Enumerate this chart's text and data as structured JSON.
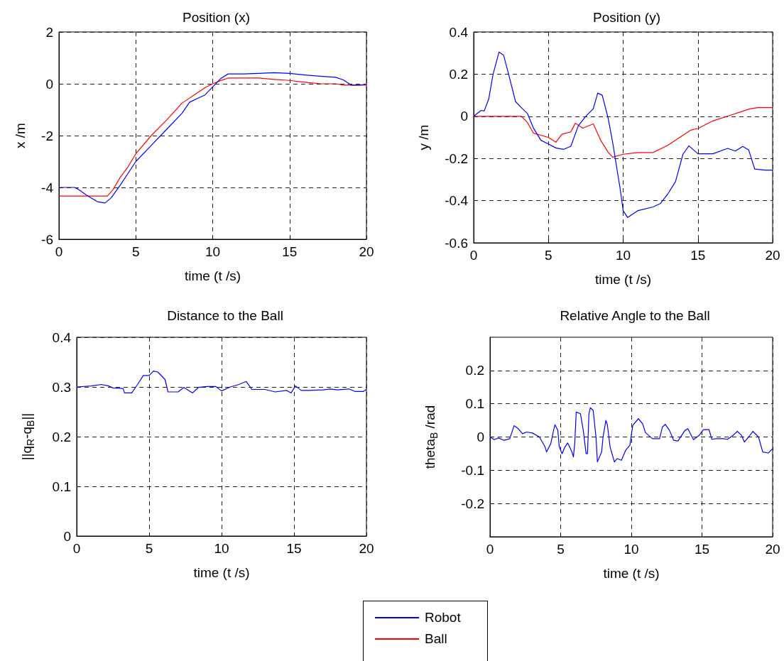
{
  "chart_data": [
    {
      "type": "line",
      "title": "Position (x)",
      "xlabel": "time (t /s)",
      "ylabel": "x /m",
      "xlim": [
        0,
        20
      ],
      "xticks": [
        0,
        5,
        10,
        15,
        20
      ],
      "ylim": [
        -6,
        2
      ],
      "yticks": [
        -6,
        -4,
        -2,
        0,
        2
      ],
      "grid": true,
      "legend": "bottom",
      "line_style": "solid",
      "marker": "none",
      "series": [
        {
          "name": "Robot",
          "color": "#0000ff",
          "x": [
            0,
            1,
            1.2,
            1.8,
            2.5,
            3,
            3.4,
            4,
            5,
            6,
            7,
            8,
            8.5,
            9,
            9.5,
            10,
            10.5,
            11,
            12,
            13,
            14,
            15,
            16,
            17,
            18,
            18.5,
            19,
            19.5,
            20
          ],
          "values": [
            -4,
            -4,
            -4.05,
            -4.3,
            -4.55,
            -4.6,
            -4.4,
            -3.9,
            -3,
            -2.38,
            -1.76,
            -1.14,
            -0.71,
            -0.57,
            -0.43,
            -0.12,
            0.19,
            0.38,
            0.38,
            0.4,
            0.43,
            0.4,
            0.34,
            0.29,
            0.25,
            0.15,
            -0.05,
            -0.05,
            -0.02
          ]
        },
        {
          "name": "Ball",
          "color": "#ff0000",
          "x": [
            0,
            3.15,
            3.5,
            4,
            4.5,
            5,
            6,
            7,
            8,
            9,
            9.5,
            10,
            10.5,
            11,
            13,
            14,
            15,
            16,
            17,
            18,
            18.5,
            20
          ],
          "values": [
            -4.33,
            -4.33,
            -4.1,
            -3.6,
            -3.2,
            -2.7,
            -2,
            -1.4,
            -0.75,
            -0.35,
            -0.15,
            0,
            0.12,
            0.22,
            0.22,
            0.17,
            0.13,
            0.06,
            0,
            0,
            -0.05,
            -0.05
          ]
        }
      ]
    },
    {
      "type": "line",
      "title": "Position (y)",
      "xlabel": "time (t /s)",
      "ylabel": "y /m",
      "xlim": [
        0,
        20
      ],
      "xticks": [
        0,
        5,
        10,
        15,
        20
      ],
      "ylim": [
        -0.6,
        0.4
      ],
      "yticks": [
        -0.6,
        -0.4,
        -0.2,
        0,
        0.2,
        0.4
      ],
      "grid": true,
      "line_style": "solid",
      "marker": "none",
      "series": [
        {
          "color": "#0000ff",
          "x": [
            0,
            0.5,
            0.7,
            1,
            1.3,
            1.7,
            2,
            2.3,
            2.8,
            3.2,
            3.6,
            4,
            4.5,
            5,
            5.5,
            6,
            6.5,
            7,
            7.5,
            8,
            8.3,
            8.6,
            9,
            9.3,
            9.8,
            10,
            10.3,
            11,
            12,
            12.5,
            13,
            13.5,
            14,
            14.4,
            15,
            16,
            17,
            17.5,
            18,
            18.4,
            18.8,
            19.5,
            20
          ],
          "values": [
            0,
            0.028,
            0.025,
            0.08,
            0.2,
            0.305,
            0.29,
            0.21,
            0.07,
            0.04,
            0.013,
            -0.056,
            -0.114,
            -0.131,
            -0.15,
            -0.157,
            -0.142,
            -0.045,
            0,
            0.036,
            0.11,
            0.1,
            -0.01,
            -0.125,
            -0.344,
            -0.447,
            -0.48,
            -0.447,
            -0.43,
            -0.413,
            -0.367,
            -0.31,
            -0.18,
            -0.14,
            -0.178,
            -0.178,
            -0.152,
            -0.165,
            -0.143,
            -0.16,
            -0.25,
            -0.255,
            -0.255
          ]
        },
        {
          "color": "#ff0000",
          "x": [
            0,
            3.2,
            3.6,
            4,
            4.5,
            5,
            5.5,
            5.9,
            6.5,
            6.8,
            7.3,
            8,
            8.5,
            9,
            9.3,
            10,
            11,
            12,
            13,
            14,
            14.5,
            15,
            16,
            17,
            18,
            18.5,
            19,
            20
          ],
          "values": [
            0,
            0,
            -0.03,
            -0.08,
            -0.09,
            -0.1,
            -0.123,
            -0.085,
            -0.074,
            -0.033,
            -0.056,
            -0.036,
            -0.114,
            -0.171,
            -0.194,
            -0.18,
            -0.172,
            -0.172,
            -0.137,
            -0.09,
            -0.066,
            -0.058,
            -0.022,
            0.001,
            0.024,
            0.036,
            0.041,
            0.041
          ]
        }
      ]
    },
    {
      "type": "line",
      "title": "Distance to the Ball",
      "xlabel": "time (t /s)",
      "ylabel": "||q$_{R}$-q$_{B}$||",
      "xlim": [
        0,
        20
      ],
      "xticks": [
        0,
        5,
        10,
        15,
        20
      ],
      "ylim": [
        0,
        0.4
      ],
      "yticks": [
        0,
        0.1,
        0.2,
        0.3,
        0.4
      ],
      "grid": true,
      "line_style": "solid",
      "marker": "none",
      "series": [
        {
          "color": "#0000ff",
          "x": [
            0,
            1,
            1.7,
            2.2,
            2.5,
            3.2,
            3.3,
            3.8,
            4.2,
            4.6,
            5,
            5.3,
            5.6,
            6.1,
            6.3,
            7,
            7.4,
            8,
            8.4,
            9,
            9.6,
            10,
            10.6,
            11.2,
            11.7,
            12.1,
            13,
            13.7,
            14.5,
            14.8,
            15.1,
            15.5,
            16,
            17,
            17.5,
            18,
            18.8,
            19.2,
            19.8,
            20
          ],
          "values": [
            0.3,
            0.302,
            0.305,
            0.302,
            0.298,
            0.297,
            0.288,
            0.288,
            0.305,
            0.323,
            0.323,
            0.332,
            0.33,
            0.315,
            0.29,
            0.29,
            0.299,
            0.288,
            0.299,
            0.301,
            0.301,
            0.292,
            0.3,
            0.305,
            0.311,
            0.295,
            0.295,
            0.29,
            0.293,
            0.288,
            0.302,
            0.293,
            0.293,
            0.294,
            0.296,
            0.294,
            0.296,
            0.291,
            0.291,
            0.295
          ]
        }
      ]
    },
    {
      "type": "line",
      "title": "Relative Angle to the Ball",
      "xlabel": "time (t /s)",
      "ylabel": "theta$_{B}$ /rad",
      "xlim": [
        0,
        20
      ],
      "xticks": [
        0,
        5,
        10,
        15,
        20
      ],
      "ylim": [
        -0.3,
        0.3
      ],
      "yticks": [
        -0.2,
        -0.1,
        0,
        0.1,
        0.2
      ],
      "grid": true,
      "line_style": "solid",
      "marker": "none",
      "series": [
        {
          "color": "#0000ff",
          "x": [
            0,
            0.3,
            0.6,
            1,
            1.4,
            1.7,
            2,
            2.3,
            2.6,
            3,
            3.5,
            3.9,
            4,
            4.3,
            4.5,
            4.6,
            4.8,
            4.9,
            5.1,
            5.3,
            5.5,
            5.8,
            5.9,
            6,
            6.1,
            6.4,
            6.6,
            6.8,
            6.9,
            7,
            7.1,
            7.3,
            7.5,
            7.6,
            7.9,
            8,
            8.2,
            8.3,
            8.5,
            8.8,
            9,
            9.3,
            9.6,
            9.9,
            10,
            10.1,
            10.5,
            10.8,
            11,
            11.5,
            12,
            12.2,
            12.4,
            12.7,
            13,
            13.3,
            13.8,
            14,
            14.4,
            14.8,
            15.1,
            15.5,
            15.7,
            16,
            16.5,
            16.8,
            17.2,
            17.5,
            17.8,
            18,
            18.3,
            18.6,
            19,
            19.3,
            19.7,
            20
          ],
          "values": [
            0,
            -0.008,
            -0.003,
            -0.01,
            -0.005,
            0.034,
            0.025,
            0.01,
            0.015,
            0.012,
            0,
            -0.03,
            -0.045,
            -0.02,
            0.02,
            0.037,
            0.02,
            -0.03,
            -0.05,
            -0.03,
            -0.018,
            -0.045,
            -0.06,
            -0.018,
            0.075,
            0.07,
            0.02,
            -0.05,
            -0.05,
            0.07,
            0.088,
            0.08,
            0,
            -0.075,
            -0.045,
            0,
            0.05,
            0.038,
            -0.03,
            -0.075,
            -0.065,
            -0.07,
            -0.04,
            -0.025,
            0.005,
            0.035,
            0.055,
            0.04,
            0.013,
            -0.005,
            -0.005,
            0.03,
            0.038,
            0.02,
            -0.01,
            -0.012,
            0.02,
            0.025,
            -0.008,
            0.005,
            0.022,
            0.022,
            -0.007,
            -0.005,
            -0.005,
            -0.007,
            0.005,
            0.017,
            0.005,
            -0.015,
            0,
            0.017,
            0,
            -0.045,
            -0.048,
            -0.035
          ]
        }
      ]
    }
  ]
}
